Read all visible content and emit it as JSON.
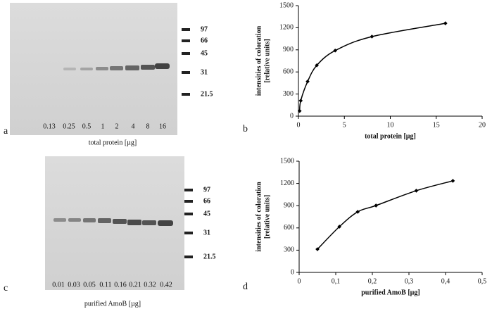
{
  "gels": [
    {
      "letter": "a",
      "caption": "total protein [µg]",
      "lanes": [
        0.13,
        0.25,
        0.5,
        1,
        2,
        4,
        8,
        16
      ],
      "markers": [
        97,
        66,
        45,
        31,
        21.5
      ]
    },
    {
      "letter": "c",
      "caption": "purified AmoB [µg]",
      "lanes": [
        0.01,
        0.03,
        0.05,
        0.11,
        0.16,
        0.21,
        0.32,
        0.42
      ],
      "markers": [
        97,
        66,
        45,
        31,
        21.5
      ]
    }
  ],
  "chart_data": [
    {
      "type": "scatter",
      "panel_label": "b",
      "x": [
        0.13,
        0.25,
        1,
        2,
        4,
        8,
        16
      ],
      "values": [
        70,
        210,
        470,
        690,
        890,
        1080,
        1260
      ],
      "color": "#000000",
      "trendline": true,
      "xlabel": "total protein [µg]",
      "ylabel": [
        "intensities of coloration",
        "[relative units]"
      ],
      "xlim": [
        0,
        20
      ],
      "xticks": [
        0,
        5,
        10,
        15,
        20
      ],
      "ylim": [
        0,
        1500
      ],
      "yticks": [
        0,
        300,
        600,
        900,
        1200,
        1500
      ]
    },
    {
      "type": "scatter",
      "panel_label": "d",
      "x": [
        0.05,
        0.11,
        0.16,
        0.21,
        0.32,
        0.42
      ],
      "values": [
        313,
        617,
        817,
        902,
        1102,
        1235
      ],
      "color": "#000000",
      "trendline": true,
      "xlabel": "purified AmoB [µg]",
      "ylabel": [
        "intensities of coloration",
        "[relative units]"
      ],
      "xlim": [
        0,
        0.5
      ],
      "xticks": [
        0,
        {
          "value": 0.1,
          "label": "0,1"
        },
        {
          "value": 0.2,
          "label": "0,2"
        },
        {
          "value": 0.3,
          "label": "0,3"
        },
        {
          "value": 0.4,
          "label": "0,4"
        },
        {
          "value": 0.5,
          "label": "0,5"
        }
      ],
      "ylim": [
        0,
        1500
      ],
      "yticks": [
        0,
        300,
        600,
        900,
        1200,
        1500
      ]
    }
  ]
}
